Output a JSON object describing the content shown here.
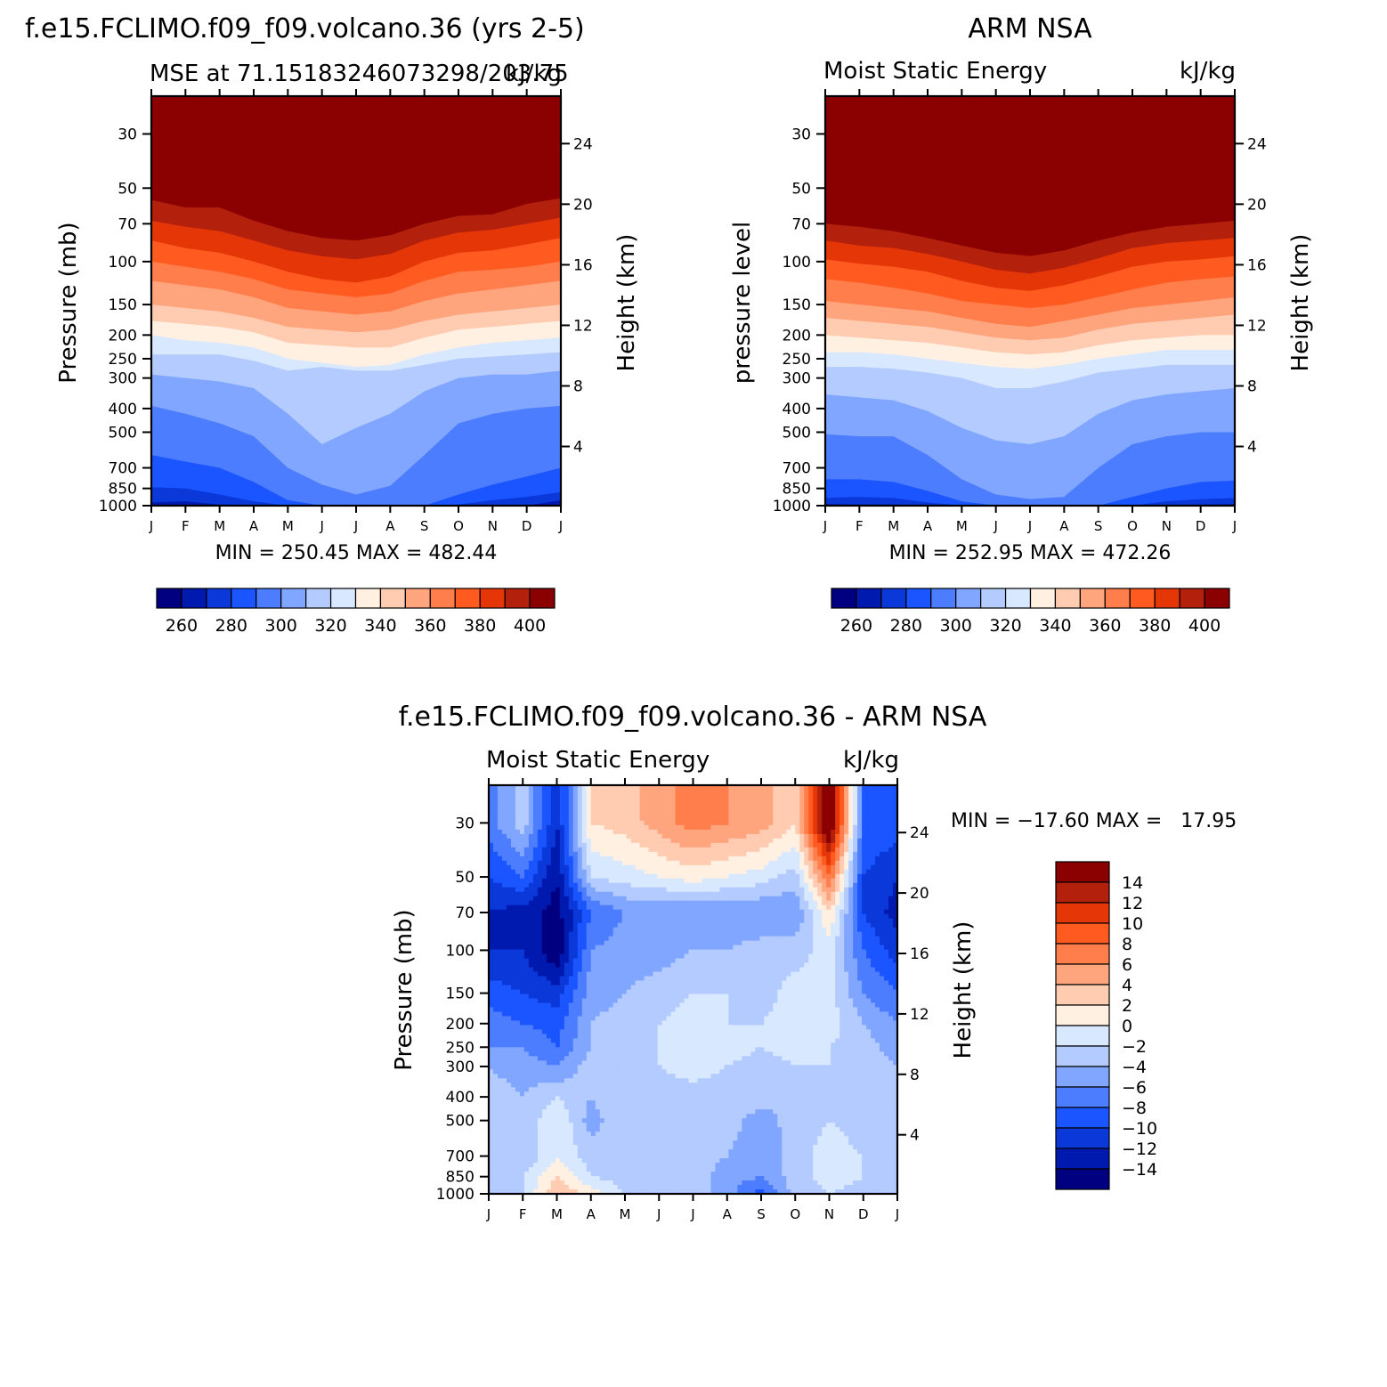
{
  "chart_data": [
    {
      "type": "heatmap",
      "title": "f.e15.FCLIMO.f09_f09.volcano.36 (yrs 2-5)",
      "subtitle_left": "MSE at 71.15183246073298/203.75",
      "subtitle_right": "kJ/kg",
      "ylabel": "Pressure (mb)",
      "ylabel_right": "Height (km)",
      "stats": "MIN = 250.45 MAX = 482.44",
      "months": [
        "J",
        "F",
        "M",
        "A",
        "M",
        "J",
        "J",
        "A",
        "S",
        "O",
        "N",
        "D",
        "J"
      ],
      "pressure_ticks": [
        "30",
        "50",
        "70",
        "100",
        "150",
        "200",
        "250",
        "300",
        "400",
        "500",
        "700",
        "850",
        "1000"
      ],
      "height_ticks": [
        "4",
        "8",
        "12",
        "16",
        "20",
        "24"
      ],
      "colorbar_labels": [
        "260",
        "280",
        "300",
        "320",
        "340",
        "360",
        "380",
        "400"
      ],
      "colors": [
        "#000080",
        "#001aaf",
        "#0a38d9",
        "#1a55ff",
        "#4d7dff",
        "#80a6ff",
        "#b3cbff",
        "#d7e8ff",
        "#fff0e1",
        "#ffcbb1",
        "#ffa57e",
        "#ff7e4c",
        "#ff5a1f",
        "#e53608",
        "#b3200c",
        "#8b0000"
      ],
      "note_boundaries": "Level boundaries in data units: lower_edges[level][month] is the pressure (mb) of the lower boundary of each color band from colorbar level 0 to 15; values are estimated MSE contour positions.",
      "boundaries_mb": [
        [
          1000,
          1000,
          1000,
          1000,
          1000,
          1000,
          1000,
          1000,
          1000,
          1000,
          1000,
          1000,
          1000
        ],
        [
          970,
          960,
          990,
          1000,
          1000,
          1000,
          1000,
          1000,
          1000,
          1000,
          1000,
          1000,
          950
        ],
        [
          840,
          850,
          900,
          960,
          1000,
          1000,
          1000,
          1000,
          1000,
          990,
          950,
          920,
          880
        ],
        [
          620,
          660,
          700,
          800,
          950,
          1000,
          1000,
          1000,
          1000,
          900,
          820,
          760,
          700
        ],
        [
          390,
          420,
          460,
          520,
          700,
          820,
          900,
          830,
          620,
          460,
          420,
          400,
          390
        ],
        [
          290,
          300,
          310,
          330,
          420,
          560,
          480,
          420,
          340,
          300,
          290,
          290,
          280
        ],
        [
          240,
          240,
          240,
          255,
          280,
          270,
          280,
          280,
          265,
          250,
          245,
          240,
          235
        ],
        [
          200,
          210,
          215,
          225,
          250,
          260,
          270,
          265,
          240,
          225,
          215,
          210,
          205
        ],
        [
          175,
          180,
          185,
          195,
          215,
          220,
          225,
          225,
          205,
          190,
          185,
          180,
          175
        ],
        [
          150,
          155,
          160,
          170,
          185,
          190,
          195,
          190,
          175,
          165,
          160,
          155,
          150
        ],
        [
          120,
          125,
          130,
          140,
          155,
          160,
          165,
          160,
          145,
          135,
          130,
          125,
          120
        ],
        [
          100,
          105,
          110,
          118,
          130,
          135,
          140,
          135,
          120,
          110,
          108,
          105,
          100
        ],
        [
          82,
          88,
          92,
          100,
          110,
          118,
          122,
          115,
          100,
          92,
          90,
          85,
          80
        ],
        [
          68,
          72,
          75,
          82,
          90,
          95,
          98,
          93,
          82,
          76,
          74,
          70,
          66
        ],
        [
          56,
          60,
          60,
          68,
          75,
          80,
          82,
          78,
          70,
          65,
          64,
          58,
          55
        ]
      ]
    },
    {
      "type": "heatmap",
      "title": "ARM NSA",
      "subtitle_left": "Moist Static Energy",
      "subtitle_right": "kJ/kg",
      "ylabel": "pressure level",
      "ylabel_right": "Height (km)",
      "stats": "MIN = 252.95 MAX = 472.26",
      "months": [
        "J",
        "F",
        "M",
        "A",
        "M",
        "J",
        "J",
        "A",
        "S",
        "O",
        "N",
        "D",
        "J"
      ],
      "pressure_ticks": [
        "30",
        "50",
        "70",
        "100",
        "150",
        "200",
        "250",
        "300",
        "400",
        "500",
        "700",
        "850",
        "1000"
      ],
      "height_ticks": [
        "4",
        "8",
        "12",
        "16",
        "20",
        "24"
      ],
      "colorbar_labels": [
        "260",
        "280",
        "300",
        "320",
        "340",
        "360",
        "380",
        "400"
      ],
      "boundaries_mb": [
        [
          985,
          990,
          990,
          1000,
          1000,
          1000,
          1000,
          1000,
          1000,
          1000,
          1000,
          990,
          985
        ],
        [
          930,
          920,
          930,
          970,
          1000,
          1000,
          1000,
          1000,
          1000,
          1000,
          960,
          940,
          930
        ],
        [
          780,
          780,
          800,
          870,
          960,
          1000,
          1000,
          1000,
          1000,
          920,
          850,
          800,
          790
        ],
        [
          510,
          520,
          520,
          620,
          780,
          900,
          940,
          920,
          700,
          560,
          520,
          500,
          500
        ],
        [
          350,
          360,
          370,
          410,
          480,
          540,
          560,
          520,
          420,
          370,
          350,
          340,
          330
        ],
        [
          270,
          270,
          275,
          285,
          300,
          330,
          330,
          310,
          285,
          275,
          265,
          265,
          265
        ],
        [
          235,
          235,
          240,
          250,
          260,
          270,
          275,
          265,
          250,
          240,
          230,
          230,
          230
        ],
        [
          200,
          205,
          210,
          215,
          225,
          235,
          240,
          235,
          220,
          210,
          205,
          200,
          200
        ],
        [
          170,
          175,
          180,
          185,
          195,
          205,
          210,
          205,
          190,
          180,
          175,
          170,
          165
        ],
        [
          145,
          150,
          155,
          160,
          170,
          180,
          185,
          175,
          165,
          155,
          150,
          145,
          140
        ],
        [
          118,
          122,
          128,
          135,
          145,
          150,
          155,
          150,
          140,
          130,
          122,
          118,
          115
        ],
        [
          98,
          102,
          105,
          110,
          120,
          128,
          132,
          125,
          115,
          105,
          100,
          98,
          95
        ],
        [
          82,
          86,
          88,
          93,
          100,
          108,
          112,
          106,
          97,
          88,
          84,
          82,
          80
        ],
        [
          70,
          72,
          75,
          80,
          86,
          92,
          95,
          90,
          82,
          76,
          72,
          70,
          68
        ]
      ]
    },
    {
      "type": "heatmap",
      "title": "f.e15.FCLIMO.f09_f09.volcano.36 - ARM NSA",
      "subtitle_left": "Moist Static Energy",
      "subtitle_right": "kJ/kg",
      "ylabel": "Pressure (mb)",
      "ylabel_right": "Height (km)",
      "stats": "MIN = −17.60 MAX =   17.95",
      "months": [
        "J",
        "F",
        "M",
        "A",
        "M",
        "J",
        "J",
        "A",
        "S",
        "O",
        "N",
        "D",
        "J"
      ],
      "pressure_ticks": [
        "30",
        "50",
        "70",
        "100",
        "150",
        "200",
        "250",
        "300",
        "400",
        "500",
        "700",
        "850",
        "1000"
      ],
      "height_ticks": [
        "4",
        "8",
        "12",
        "16",
        "20",
        "24"
      ],
      "colorbar_labels": [
        "14",
        "12",
        "10",
        "8",
        "6",
        "4",
        "2",
        "0",
        "−2",
        "−4",
        "−6",
        "−8",
        "−10",
        "−12",
        "−14"
      ],
      "diff_colors": [
        "#000080",
        "#001aaf",
        "#0a38d9",
        "#1a55ff",
        "#4d7dff",
        "#80a6ff",
        "#b3cbff",
        "#d7e8ff",
        "#fff0e1",
        "#ffcbb1",
        "#ffa57e",
        "#ff7e4c",
        "#ff5a1f",
        "#e53608",
        "#b3200c",
        "#8b0000"
      ],
      "level_values_top": [
        [
          -7,
          -3,
          -12,
          2,
          3,
          5,
          7,
          6,
          5,
          2,
          18,
          -8,
          -9
        ],
        [
          -10,
          -8,
          -14,
          -2,
          -1,
          0,
          1,
          0,
          -1,
          -3,
          8,
          -10,
          -12
        ],
        [
          -12,
          -13,
          -15,
          -8,
          -6,
          -6,
          -6,
          -6,
          -6,
          -6,
          2,
          -10,
          -13
        ],
        [
          -12,
          -12,
          -16,
          -6,
          -5,
          -5,
          -4,
          -4,
          -3,
          -3,
          -1,
          -8,
          -11
        ],
        [
          -9,
          -10,
          -11,
          -5,
          -4,
          -3,
          -2,
          -2,
          -3,
          -1,
          -1,
          -6,
          -8
        ],
        [
          -7,
          -8,
          -9,
          -4,
          -3,
          -2,
          -1,
          -2,
          -2,
          -1,
          -1,
          -4,
          -6
        ],
        [
          -6,
          -6,
          -8,
          -4,
          -3,
          -2,
          0,
          -1,
          -2,
          -1,
          -2,
          -3,
          -5
        ],
        [
          -4,
          -5,
          -6,
          -3,
          -3,
          -2,
          -1,
          -2,
          -3,
          -2,
          -2,
          -3,
          -4
        ],
        [
          -3,
          -4,
          -2,
          -4,
          -2,
          -3,
          -3,
          -3,
          -3,
          -4,
          -3,
          -3,
          -3
        ],
        [
          -3,
          -4,
          0,
          -5,
          -2,
          -3,
          -3,
          -3,
          -5,
          -3,
          -2,
          -3,
          -3
        ],
        [
          -3,
          -4,
          0,
          -3,
          -2,
          -4,
          -3,
          -4,
          -6,
          -3,
          -1,
          -2,
          -3
        ],
        [
          -3,
          -2,
          2,
          -2,
          -3,
          -4,
          -3,
          -5,
          -6,
          -3,
          -1,
          -2,
          -3
        ],
        [
          -3,
          -2,
          4,
          1,
          -2,
          -3,
          -3,
          -5,
          -9,
          -3,
          -2,
          -3,
          -3
        ]
      ],
      "note": "level_values_top[i][j] approximate difference values (kJ/kg) at pressure tick i (30..1000 mb) and month j."
    }
  ]
}
